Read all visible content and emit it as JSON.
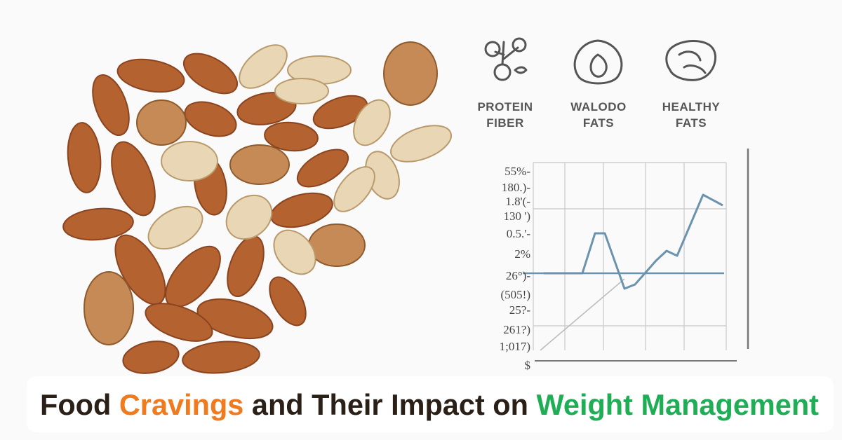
{
  "icons": [
    {
      "lines": [
        "PROTEIN",
        "FIBER"
      ]
    },
    {
      "lines": [
        "WALODO",
        "FATS"
      ]
    },
    {
      "lines": [
        "HEALTHY",
        "FATS"
      ]
    }
  ],
  "chart": {
    "y_labels": [
      "55%-",
      "180.)-",
      "1.8'(-",
      "130 ')",
      "0.5.'-",
      "2%",
      "26°)-",
      "(505!)",
      "25?-",
      "261?)",
      "1;017)",
      "$"
    ]
  },
  "title": [
    {
      "text": "Food ",
      "color": "#2a2018"
    },
    {
      "text": "Cravings",
      "color": "#f07a1e"
    },
    {
      "text": " and Their Impact on ",
      "color": "#2a2018"
    },
    {
      "text": "Weight Management",
      "color": "#1fae55"
    }
  ]
}
